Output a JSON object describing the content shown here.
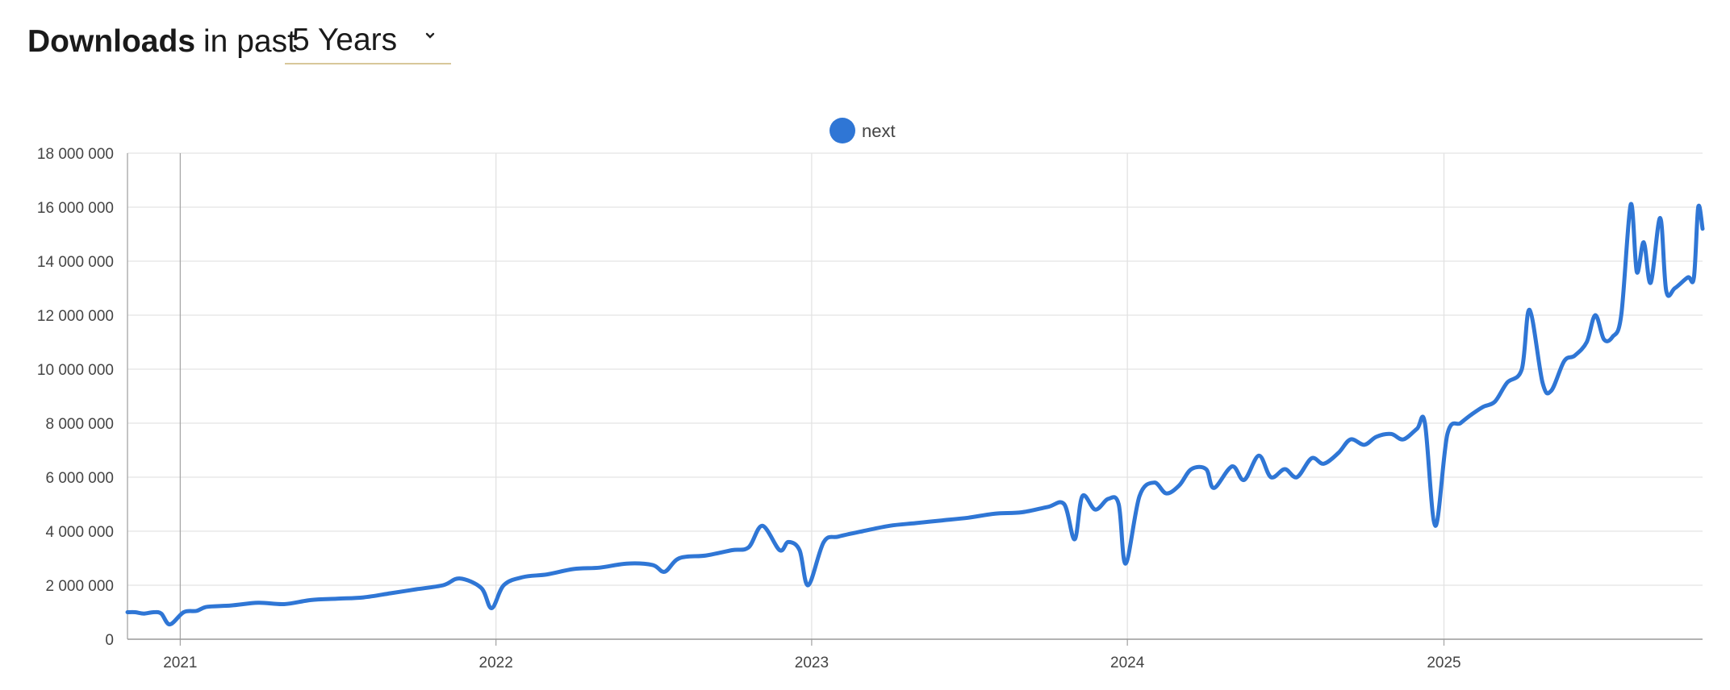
{
  "header": {
    "bold": "Downloads",
    "light": "in past",
    "range_selected": "5 Years"
  },
  "colors": {
    "series": "#2f76d5",
    "grid": "#e3e3e3",
    "axis_text": "#444444",
    "select_underline": "#d8c79a"
  },
  "chart_data": {
    "type": "line",
    "title": "",
    "xlabel": "",
    "ylabel": "",
    "ylim": [
      0,
      18000000
    ],
    "yticks": [
      0,
      2000000,
      4000000,
      6000000,
      8000000,
      10000000,
      12000000,
      14000000,
      16000000,
      18000000
    ],
    "ytick_labels": [
      "0",
      "2 000 000",
      "4 000 000",
      "6 000 000",
      "8 000 000",
      "10 000 000",
      "12 000 000",
      "14 000 000",
      "16 000 000",
      "18 000 000"
    ],
    "xlim": [
      "2020-11-01",
      "2025-10-27"
    ],
    "xticks": [
      "2021-01-01",
      "2022-01-01",
      "2023-01-01",
      "2024-01-01",
      "2025-01-01"
    ],
    "xtick_labels": [
      "2021",
      "2022",
      "2023",
      "2024",
      "2025"
    ],
    "grid": true,
    "legend": "top-center",
    "series": [
      {
        "name": "next",
        "points": [
          [
            "2020-11-01",
            1000000
          ],
          [
            "2020-11-10",
            1000000
          ],
          [
            "2020-11-20",
            950000
          ],
          [
            "2020-12-01",
            1000000
          ],
          [
            "2020-12-10",
            950000
          ],
          [
            "2020-12-20",
            550000
          ],
          [
            "2021-01-05",
            1000000
          ],
          [
            "2021-01-20",
            1050000
          ],
          [
            "2021-02-01",
            1200000
          ],
          [
            "2021-03-01",
            1250000
          ],
          [
            "2021-04-01",
            1350000
          ],
          [
            "2021-05-01",
            1300000
          ],
          [
            "2021-06-01",
            1450000
          ],
          [
            "2021-07-01",
            1500000
          ],
          [
            "2021-08-01",
            1550000
          ],
          [
            "2021-09-01",
            1700000
          ],
          [
            "2021-10-01",
            1850000
          ],
          [
            "2021-11-01",
            2000000
          ],
          [
            "2021-11-20",
            2250000
          ],
          [
            "2021-12-15",
            1900000
          ],
          [
            "2021-12-27",
            1150000
          ],
          [
            "2022-01-10",
            2000000
          ],
          [
            "2022-02-01",
            2300000
          ],
          [
            "2022-03-01",
            2400000
          ],
          [
            "2022-04-01",
            2600000
          ],
          [
            "2022-05-01",
            2650000
          ],
          [
            "2022-06-01",
            2800000
          ],
          [
            "2022-07-01",
            2750000
          ],
          [
            "2022-07-15",
            2500000
          ],
          [
            "2022-08-01",
            3000000
          ],
          [
            "2022-09-01",
            3100000
          ],
          [
            "2022-10-01",
            3300000
          ],
          [
            "2022-10-20",
            3400000
          ],
          [
            "2022-11-05",
            4200000
          ],
          [
            "2022-11-25",
            3300000
          ],
          [
            "2022-12-05",
            3600000
          ],
          [
            "2022-12-18",
            3300000
          ],
          [
            "2022-12-28",
            2000000
          ],
          [
            "2023-01-15",
            3600000
          ],
          [
            "2023-02-01",
            3800000
          ],
          [
            "2023-03-01",
            4000000
          ],
          [
            "2023-04-01",
            4200000
          ],
          [
            "2023-05-01",
            4300000
          ],
          [
            "2023-06-01",
            4400000
          ],
          [
            "2023-07-01",
            4500000
          ],
          [
            "2023-08-01",
            4650000
          ],
          [
            "2023-09-01",
            4700000
          ],
          [
            "2023-10-01",
            4900000
          ],
          [
            "2023-10-20",
            5000000
          ],
          [
            "2023-11-01",
            3700000
          ],
          [
            "2023-11-10",
            5300000
          ],
          [
            "2023-11-25",
            4800000
          ],
          [
            "2023-12-10",
            5200000
          ],
          [
            "2023-12-22",
            5000000
          ],
          [
            "2023-12-30",
            2800000
          ],
          [
            "2024-01-15",
            5300000
          ],
          [
            "2024-02-01",
            5800000
          ],
          [
            "2024-02-15",
            5400000
          ],
          [
            "2024-03-01",
            5700000
          ],
          [
            "2024-03-15",
            6300000
          ],
          [
            "2024-04-01",
            6300000
          ],
          [
            "2024-04-10",
            5600000
          ],
          [
            "2024-05-01",
            6400000
          ],
          [
            "2024-05-15",
            5900000
          ],
          [
            "2024-06-01",
            6800000
          ],
          [
            "2024-06-15",
            6000000
          ],
          [
            "2024-07-01",
            6300000
          ],
          [
            "2024-07-15",
            6000000
          ],
          [
            "2024-08-01",
            6700000
          ],
          [
            "2024-08-15",
            6500000
          ],
          [
            "2024-09-01",
            6900000
          ],
          [
            "2024-09-15",
            7400000
          ],
          [
            "2024-10-01",
            7200000
          ],
          [
            "2024-10-15",
            7500000
          ],
          [
            "2024-11-01",
            7600000
          ],
          [
            "2024-11-15",
            7400000
          ],
          [
            "2024-12-01",
            7800000
          ],
          [
            "2024-12-10",
            8000000
          ],
          [
            "2024-12-22",
            4200000
          ],
          [
            "2025-01-05",
            7600000
          ],
          [
            "2025-01-20",
            8000000
          ],
          [
            "2025-02-01",
            8300000
          ],
          [
            "2025-02-15",
            8600000
          ],
          [
            "2025-03-01",
            8800000
          ],
          [
            "2025-03-15",
            9500000
          ],
          [
            "2025-04-01",
            10000000
          ],
          [
            "2025-04-10",
            12200000
          ],
          [
            "2025-04-25",
            9500000
          ],
          [
            "2025-05-05",
            9200000
          ],
          [
            "2025-05-20",
            10300000
          ],
          [
            "2025-06-01",
            10500000
          ],
          [
            "2025-06-15",
            11000000
          ],
          [
            "2025-06-25",
            12000000
          ],
          [
            "2025-07-05",
            11100000
          ],
          [
            "2025-07-15",
            11200000
          ],
          [
            "2025-07-25",
            12000000
          ],
          [
            "2025-08-05",
            16100000
          ],
          [
            "2025-08-12",
            13600000
          ],
          [
            "2025-08-20",
            14700000
          ],
          [
            "2025-08-28",
            13200000
          ],
          [
            "2025-09-08",
            15600000
          ],
          [
            "2025-09-15",
            12900000
          ],
          [
            "2025-09-25",
            13000000
          ],
          [
            "2025-10-10",
            13400000
          ],
          [
            "2025-10-17",
            13400000
          ],
          [
            "2025-10-22",
            16000000
          ],
          [
            "2025-10-27",
            15200000
          ]
        ]
      }
    ]
  }
}
